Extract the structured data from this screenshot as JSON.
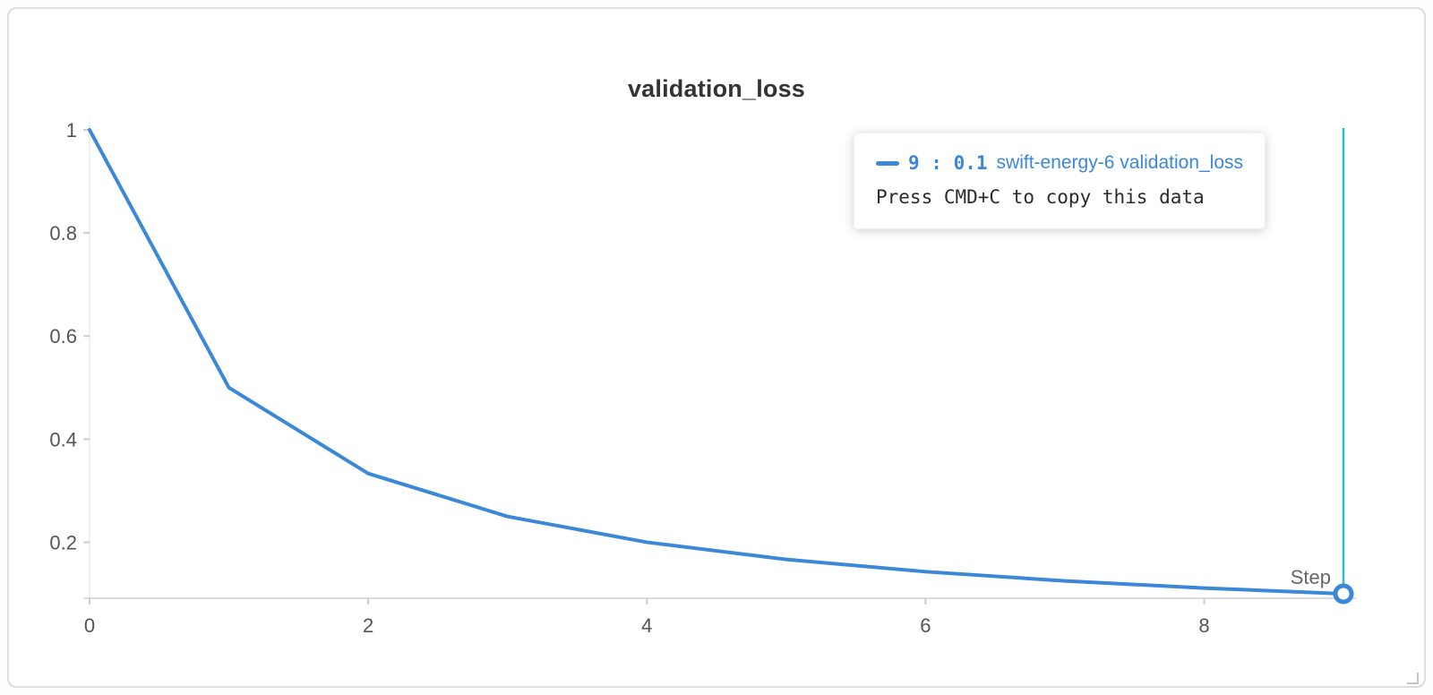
{
  "panel": {
    "title": "validation_loss"
  },
  "tooltip": {
    "step_text": "9 :",
    "value_text": "0.1",
    "run_name": "swift-energy-6",
    "metric": "validation_loss",
    "hint": "Press CMD+C to copy this data"
  },
  "colors": {
    "line": "#3b87d8",
    "crosshair": "#30b8d9",
    "axis_line": "#dcdcdc",
    "tick_text": "#555555",
    "title_text": "#333333",
    "step_label_text": "#666666"
  },
  "chart_data": {
    "type": "line",
    "title": "validation_loss",
    "xlabel": "Step",
    "ylabel": "",
    "x": [
      0,
      1,
      2,
      3,
      4,
      5,
      6,
      7,
      8,
      9
    ],
    "series": [
      {
        "name": "swift-energy-6 validation_loss",
        "values": [
          1,
          0.5,
          0.3333,
          0.25,
          0.2,
          0.1667,
          0.1429,
          0.125,
          0.1111,
          0.1
        ]
      }
    ],
    "xlim": [
      0,
      9
    ],
    "ylim": [
      0.1,
      1
    ],
    "x_ticks": [
      0,
      2,
      4,
      6,
      8
    ],
    "y_ticks": [
      1,
      0.8,
      0.6,
      0.4,
      0.2
    ],
    "grid": false,
    "legend_position": "none",
    "crosshair_x": 9,
    "highlight_point": {
      "x": 9,
      "y": 0.1
    }
  }
}
